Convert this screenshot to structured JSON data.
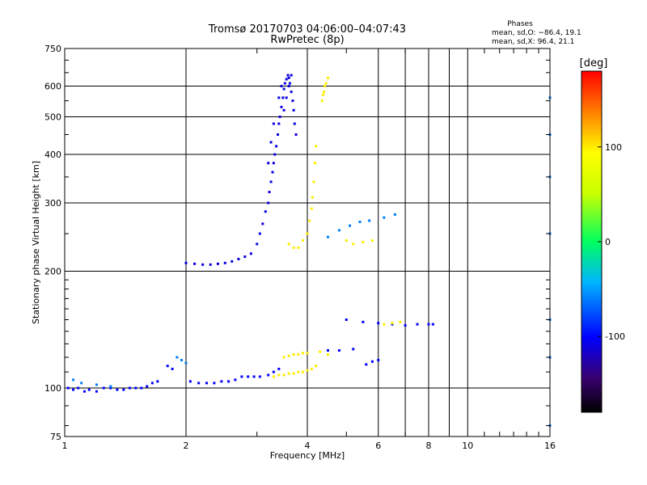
{
  "chart_data": {
    "type": "scatter",
    "title": "Tromsø 20170703 04:06:00–04:07:43",
    "subtitle": "RwPretec (8p)",
    "xlabel": "Frequency [MHz]",
    "ylabel": "Stationary phase Virtual Height [km]",
    "x_scale": "log",
    "y_scale": "log",
    "xlim": [
      1,
      16
    ],
    "ylim": [
      75,
      750
    ],
    "x_ticks": [
      1,
      2,
      4,
      6,
      8,
      10,
      16
    ],
    "y_ticks": [
      75,
      100,
      200,
      300,
      400,
      500,
      600,
      750
    ],
    "grid": true,
    "phases_box": {
      "title": "Phases",
      "line1": "mean, sd,O: −86.4, 19.1",
      "line2": "mean, sd,X:  96.4, 21.1"
    },
    "colorbar": {
      "label": "[deg]",
      "range": [
        -180,
        180
      ],
      "ticks": [
        100,
        0,
        -100
      ]
    },
    "series": [
      {
        "phase": -100,
        "points": [
          [
            1.02,
            100
          ],
          [
            1.05,
            99
          ],
          [
            1.08,
            100
          ],
          [
            1.12,
            98
          ],
          [
            1.15,
            99
          ],
          [
            1.2,
            98
          ],
          [
            1.25,
            100
          ],
          [
            1.3,
            100
          ],
          [
            1.35,
            99
          ],
          [
            1.4,
            99
          ],
          [
            1.45,
            100
          ],
          [
            1.5,
            100
          ],
          [
            1.55,
            100
          ],
          [
            1.6,
            101
          ],
          [
            1.65,
            103
          ],
          [
            1.7,
            104
          ],
          [
            1.8,
            114
          ],
          [
            1.85,
            112
          ],
          [
            2.05,
            104
          ],
          [
            2.15,
            103
          ],
          [
            2.25,
            103
          ],
          [
            2.35,
            103
          ],
          [
            2.45,
            104
          ],
          [
            2.55,
            104
          ],
          [
            2.65,
            105
          ],
          [
            2.75,
            107
          ],
          [
            2.85,
            107
          ],
          [
            2.95,
            107
          ],
          [
            3.05,
            107
          ]
        ]
      },
      {
        "phase": -110,
        "points": [
          [
            2.0,
            210
          ],
          [
            2.1,
            209
          ],
          [
            2.2,
            208
          ],
          [
            2.3,
            208
          ],
          [
            2.4,
            209
          ],
          [
            2.5,
            210
          ],
          [
            2.6,
            212
          ],
          [
            2.7,
            215
          ],
          [
            2.8,
            218
          ],
          [
            2.9,
            222
          ],
          [
            3.0,
            235
          ],
          [
            3.05,
            250
          ],
          [
            3.1,
            265
          ],
          [
            3.15,
            285
          ],
          [
            3.2,
            300
          ],
          [
            3.22,
            320
          ],
          [
            3.25,
            340
          ],
          [
            3.28,
            360
          ],
          [
            3.3,
            380
          ],
          [
            3.32,
            400
          ],
          [
            3.35,
            420
          ],
          [
            3.38,
            450
          ],
          [
            3.4,
            480
          ],
          [
            3.42,
            500
          ],
          [
            3.45,
            530
          ],
          [
            3.48,
            560
          ],
          [
            3.5,
            590
          ],
          [
            3.52,
            610
          ],
          [
            3.55,
            625
          ],
          [
            3.58,
            640
          ],
          [
            3.6,
            630
          ],
          [
            3.62,
            610
          ],
          [
            3.65,
            580
          ],
          [
            3.68,
            550
          ],
          [
            3.7,
            520
          ],
          [
            3.72,
            480
          ],
          [
            3.75,
            450
          ],
          [
            3.5,
            520
          ],
          [
            3.55,
            560
          ],
          [
            3.6,
            600
          ],
          [
            3.4,
            560
          ],
          [
            3.45,
            600
          ],
          [
            3.65,
            640
          ],
          [
            3.3,
            480
          ],
          [
            3.25,
            430
          ],
          [
            3.2,
            380
          ]
        ]
      },
      {
        "phase": -100,
        "points": [
          [
            5.0,
            150
          ],
          [
            5.5,
            148
          ],
          [
            6.0,
            147
          ],
          [
            6.5,
            146
          ],
          [
            7.0,
            145
          ],
          [
            7.5,
            146
          ],
          [
            8.0,
            146
          ],
          [
            8.2,
            146
          ],
          [
            5.6,
            115
          ],
          [
            5.8,
            117
          ],
          [
            6.0,
            118
          ],
          [
            4.5,
            125
          ],
          [
            4.8,
            125
          ],
          [
            5.2,
            126
          ],
          [
            3.2,
            108
          ],
          [
            3.3,
            110
          ],
          [
            3.4,
            112
          ]
        ]
      },
      {
        "phase": 100,
        "points": [
          [
            3.3,
            107
          ],
          [
            3.4,
            108
          ],
          [
            3.5,
            108
          ],
          [
            3.6,
            109
          ],
          [
            3.7,
            109
          ],
          [
            3.8,
            110
          ],
          [
            3.9,
            110
          ],
          [
            4.0,
            111
          ],
          [
            4.1,
            112
          ],
          [
            4.2,
            114
          ],
          [
            3.5,
            120
          ],
          [
            3.6,
            121
          ],
          [
            3.7,
            122
          ],
          [
            3.8,
            122
          ],
          [
            3.9,
            123
          ],
          [
            4.0,
            123
          ],
          [
            4.3,
            124
          ],
          [
            4.5,
            122
          ],
          [
            6.2,
            146
          ],
          [
            6.5,
            147
          ],
          [
            6.8,
            148
          ],
          [
            3.8,
            230
          ],
          [
            3.9,
            240
          ],
          [
            4.0,
            250
          ],
          [
            4.05,
            270
          ],
          [
            4.1,
            290
          ],
          [
            4.12,
            310
          ],
          [
            4.15,
            340
          ],
          [
            4.18,
            380
          ],
          [
            4.2,
            420
          ],
          [
            4.35,
            550
          ],
          [
            4.4,
            580
          ],
          [
            4.45,
            610
          ],
          [
            4.5,
            630
          ],
          [
            4.42,
            600
          ],
          [
            4.38,
            570
          ],
          [
            5.0,
            240
          ],
          [
            5.2,
            235
          ],
          [
            5.5,
            238
          ],
          [
            5.8,
            240
          ],
          [
            3.6,
            235
          ],
          [
            3.7,
            230
          ]
        ]
      },
      {
        "phase": -60,
        "points": [
          [
            1.05,
            105
          ],
          [
            1.1,
            103
          ],
          [
            1.2,
            102
          ],
          [
            1.3,
            101
          ],
          [
            1.9,
            120
          ],
          [
            1.95,
            118
          ],
          [
            2.0,
            116
          ],
          [
            4.5,
            245
          ],
          [
            4.8,
            255
          ],
          [
            5.1,
            262
          ],
          [
            5.4,
            268
          ],
          [
            5.7,
            270
          ],
          [
            6.2,
            275
          ],
          [
            6.6,
            280
          ],
          [
            16.0,
            560
          ],
          [
            16.0,
            450
          ],
          [
            16.0,
            350
          ],
          [
            16.0,
            250
          ],
          [
            16.0,
            150
          ],
          [
            16.0,
            120
          ],
          [
            16.0,
            80
          ]
        ]
      }
    ]
  }
}
